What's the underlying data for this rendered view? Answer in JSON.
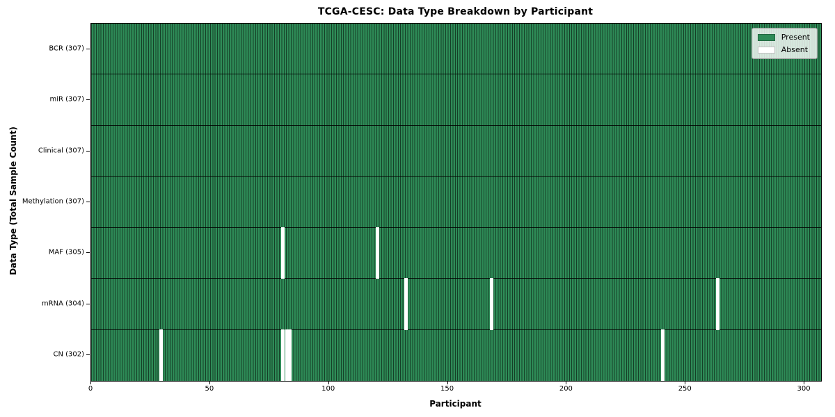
{
  "title": "TCGA-CESC: Data Type Breakdown by Participant",
  "xlabel": "Participant",
  "ylabel": "Data Type (Total Sample Count)",
  "legend": {
    "present_label": "Present",
    "absent_label": "Absent"
  },
  "x_ticks": [
    0,
    50,
    100,
    150,
    200,
    250,
    300
  ],
  "colors": {
    "present": "#2e8b57",
    "absent": "#ffffff",
    "cell_edge": "rgba(0,0,0,0.55)",
    "row_separator": "rgba(0,0,0,0.85)",
    "legend_border": "#9a9a9a",
    "legend_background": "rgba(255,255,255,0.8)"
  },
  "chart_data": {
    "type": "heatmap",
    "title": "TCGA-CESC: Data Type Breakdown by Participant",
    "xlabel": "Participant",
    "ylabel": "Data Type (Total Sample Count)",
    "x_range": [
      0,
      307
    ],
    "x_ticks": [
      0,
      50,
      100,
      150,
      200,
      250,
      300
    ],
    "legend_entries": [
      "Present",
      "Absent"
    ],
    "legend_position": "upper right",
    "cell_states": [
      "present",
      "absent"
    ],
    "rows": [
      {
        "label": "BCR (307)",
        "data_type": "BCR",
        "present_count": 307,
        "absent_participants": []
      },
      {
        "label": "miR (307)",
        "data_type": "miR",
        "present_count": 307,
        "absent_participants": []
      },
      {
        "label": "Clinical (307)",
        "data_type": "Clinical",
        "present_count": 307,
        "absent_participants": []
      },
      {
        "label": "Methylation (307)",
        "data_type": "Methylation",
        "present_count": 307,
        "absent_participants": []
      },
      {
        "label": "MAF (305)",
        "data_type": "MAF",
        "present_count": 305,
        "absent_participants": [
          80,
          120
        ]
      },
      {
        "label": "mRNA (304)",
        "data_type": "mRNA",
        "present_count": 304,
        "absent_participants": [
          132,
          168,
          263
        ]
      },
      {
        "label": "CN (302)",
        "data_type": "CN",
        "present_count": 302,
        "absent_participants": [
          29,
          80,
          82,
          83,
          240
        ]
      }
    ]
  }
}
